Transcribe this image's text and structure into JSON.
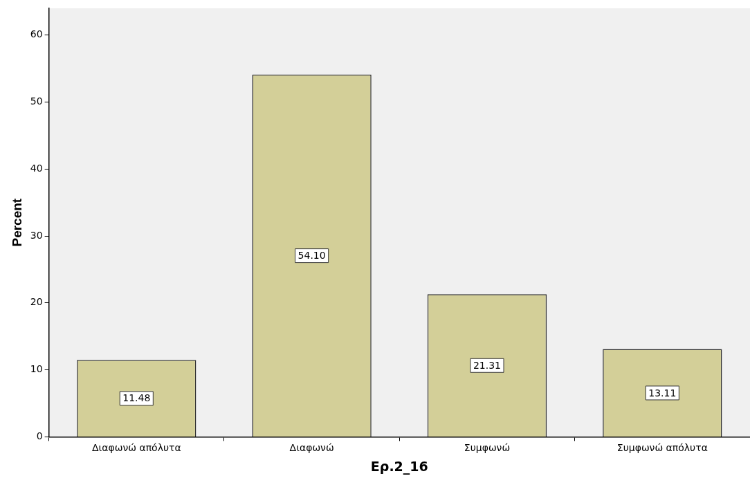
{
  "chart_data": {
    "type": "bar",
    "xlabel": "Ερ.2_16",
    "ylabel": "Percent",
    "categories": [
      "Διαφωνώ απόλυτα",
      "Διαφωνώ",
      "Συμφωνώ",
      "Συμφωνώ απόλυτα"
    ],
    "values": [
      11.48,
      54.1,
      21.31,
      13.11
    ],
    "color": "#d3cf98",
    "ylim": [
      0,
      64
    ],
    "yticks": [
      0,
      10,
      20,
      30,
      40,
      50,
      60
    ],
    "value_labels": [
      "11.48",
      "54.10",
      "21.31",
      "13.11"
    ],
    "grid": false,
    "legend": false
  }
}
